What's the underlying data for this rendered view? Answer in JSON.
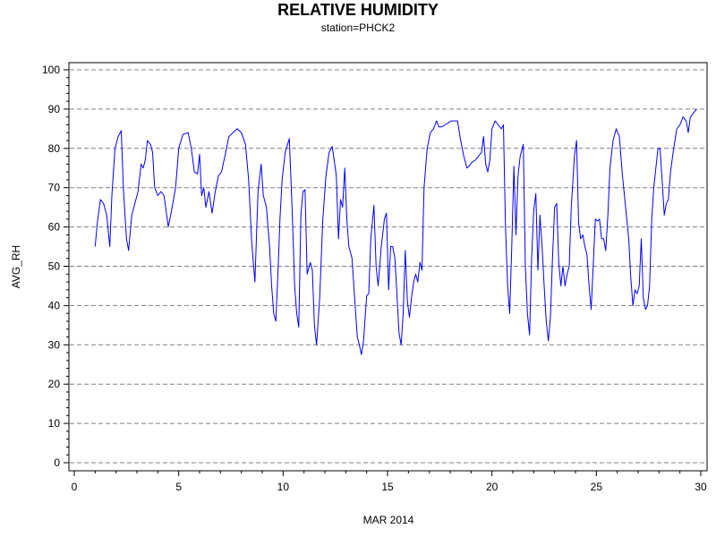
{
  "chart_data": {
    "type": "line",
    "title": "RELATIVE HUMIDITY",
    "subtitle": "station=PHCK2",
    "xlabel": "MAR 2014",
    "ylabel": "AVG_RH",
    "xlim": [
      0,
      30
    ],
    "ylim": [
      0,
      100
    ],
    "x_ticks": [
      0,
      5,
      10,
      15,
      20,
      25,
      30
    ],
    "x_tick_labels": [
      "0",
      "5",
      "10",
      "15",
      "20",
      "25",
      "30"
    ],
    "y_ticks": [
      0,
      10,
      20,
      30,
      40,
      50,
      60,
      70,
      80,
      90,
      100
    ],
    "y_tick_labels": [
      "0",
      "10",
      "20",
      "30",
      "40",
      "50",
      "60",
      "70",
      "80",
      "90",
      "100"
    ],
    "grid": "horizontal dashed",
    "line_color": "#0000ff",
    "grid_color": "#808080",
    "series": [
      {
        "points": [
          [
            1.0,
            55
          ],
          [
            1.1,
            61
          ],
          [
            1.25,
            67
          ],
          [
            1.4,
            66
          ],
          [
            1.55,
            63
          ],
          [
            1.7,
            55
          ],
          [
            1.8,
            68
          ],
          [
            1.95,
            80
          ],
          [
            2.1,
            83
          ],
          [
            2.25,
            84.5
          ],
          [
            2.35,
            70
          ],
          [
            2.5,
            57
          ],
          [
            2.6,
            54
          ],
          [
            2.75,
            63
          ],
          [
            2.9,
            66
          ],
          [
            3.05,
            69
          ],
          [
            3.2,
            76
          ],
          [
            3.3,
            75
          ],
          [
            3.4,
            77
          ],
          [
            3.5,
            82
          ],
          [
            3.65,
            81
          ],
          [
            3.75,
            79
          ],
          [
            3.85,
            70
          ],
          [
            4.0,
            68
          ],
          [
            4.15,
            69
          ],
          [
            4.3,
            68
          ],
          [
            4.5,
            60
          ],
          [
            4.65,
            64
          ],
          [
            4.85,
            70
          ],
          [
            5.0,
            80
          ],
          [
            5.2,
            83.5
          ],
          [
            5.45,
            84
          ],
          [
            5.6,
            80
          ],
          [
            5.75,
            74
          ],
          [
            5.9,
            73.5
          ],
          [
            6.0,
            78.5
          ],
          [
            6.1,
            68
          ],
          [
            6.2,
            70
          ],
          [
            6.3,
            65
          ],
          [
            6.45,
            69
          ],
          [
            6.6,
            63.5
          ],
          [
            6.75,
            69
          ],
          [
            6.9,
            73
          ],
          [
            7.05,
            74
          ],
          [
            7.25,
            79
          ],
          [
            7.4,
            83
          ],
          [
            7.6,
            84
          ],
          [
            7.8,
            85
          ],
          [
            8.0,
            84
          ],
          [
            8.2,
            81
          ],
          [
            8.35,
            72
          ],
          [
            8.5,
            56
          ],
          [
            8.65,
            46
          ],
          [
            8.8,
            69
          ],
          [
            8.95,
            76
          ],
          [
            9.05,
            68
          ],
          [
            9.2,
            65
          ],
          [
            9.35,
            55
          ],
          [
            9.45,
            45
          ],
          [
            9.55,
            38
          ],
          [
            9.65,
            36
          ],
          [
            9.75,
            48
          ],
          [
            9.85,
            62
          ],
          [
            9.95,
            72
          ],
          [
            10.1,
            79
          ],
          [
            10.3,
            82.5
          ],
          [
            10.45,
            62
          ],
          [
            10.55,
            45
          ],
          [
            10.65,
            38
          ],
          [
            10.75,
            34.5
          ],
          [
            10.85,
            63
          ],
          [
            10.95,
            69
          ],
          [
            11.05,
            69.5
          ],
          [
            11.15,
            48
          ],
          [
            11.3,
            51
          ],
          [
            11.4,
            49
          ],
          [
            11.5,
            35
          ],
          [
            11.6,
            30
          ],
          [
            11.75,
            42
          ],
          [
            11.9,
            62
          ],
          [
            12.05,
            73
          ],
          [
            12.2,
            79
          ],
          [
            12.35,
            80.5
          ],
          [
            12.55,
            73
          ],
          [
            12.65,
            57
          ],
          [
            12.75,
            67
          ],
          [
            12.85,
            65
          ],
          [
            12.95,
            75
          ],
          [
            13.05,
            62
          ],
          [
            13.15,
            55
          ],
          [
            13.3,
            52
          ],
          [
            13.45,
            40
          ],
          [
            13.55,
            32
          ],
          [
            13.65,
            30
          ],
          [
            13.75,
            27.5
          ],
          [
            13.85,
            31
          ],
          [
            14.0,
            42.5
          ],
          [
            14.1,
            43
          ],
          [
            14.2,
            57
          ],
          [
            14.35,
            65.5
          ],
          [
            14.45,
            50
          ],
          [
            14.55,
            45
          ],
          [
            14.7,
            55
          ],
          [
            14.85,
            62
          ],
          [
            14.95,
            63.5
          ],
          [
            15.05,
            44
          ],
          [
            15.15,
            55
          ],
          [
            15.25,
            55
          ],
          [
            15.35,
            52
          ],
          [
            15.45,
            43
          ],
          [
            15.55,
            33
          ],
          [
            15.65,
            30
          ],
          [
            15.75,
            38
          ],
          [
            15.85,
            54
          ],
          [
            15.95,
            41
          ],
          [
            16.05,
            37
          ],
          [
            16.15,
            42
          ],
          [
            16.25,
            46
          ],
          [
            16.35,
            48
          ],
          [
            16.45,
            46
          ],
          [
            16.55,
            51
          ],
          [
            16.65,
            49
          ],
          [
            16.75,
            70
          ],
          [
            16.9,
            80
          ],
          [
            17.05,
            84
          ],
          [
            17.2,
            85
          ],
          [
            17.35,
            87
          ],
          [
            17.45,
            85.5
          ],
          [
            17.6,
            85.5
          ],
          [
            17.75,
            86
          ],
          [
            17.9,
            86.5
          ],
          [
            18.05,
            87
          ],
          [
            18.2,
            87
          ],
          [
            18.35,
            87
          ],
          [
            18.5,
            82
          ],
          [
            18.65,
            78
          ],
          [
            18.8,
            75
          ],
          [
            18.9,
            75.5
          ],
          [
            19.05,
            76.5
          ],
          [
            19.2,
            77
          ],
          [
            19.35,
            78
          ],
          [
            19.5,
            79
          ],
          [
            19.6,
            83
          ],
          [
            19.7,
            76
          ],
          [
            19.8,
            74
          ],
          [
            19.9,
            77
          ],
          [
            20.0,
            85
          ],
          [
            20.15,
            87
          ],
          [
            20.3,
            86
          ],
          [
            20.45,
            85
          ],
          [
            20.55,
            86
          ],
          [
            20.65,
            60
          ],
          [
            20.75,
            45
          ],
          [
            20.85,
            38
          ],
          [
            20.95,
            55
          ],
          [
            21.05,
            75.5
          ],
          [
            21.15,
            58
          ],
          [
            21.25,
            73
          ],
          [
            21.35,
            78
          ],
          [
            21.5,
            81
          ],
          [
            21.6,
            50
          ],
          [
            21.7,
            38
          ],
          [
            21.8,
            32.5
          ],
          [
            21.9,
            52
          ],
          [
            22.0,
            64
          ],
          [
            22.1,
            68.5
          ],
          [
            22.2,
            49
          ],
          [
            22.3,
            63
          ],
          [
            22.4,
            55
          ],
          [
            22.5,
            45
          ],
          [
            22.6,
            36
          ],
          [
            22.7,
            31
          ],
          [
            22.8,
            37
          ],
          [
            22.9,
            52
          ],
          [
            23.0,
            65
          ],
          [
            23.1,
            66
          ],
          [
            23.2,
            51
          ],
          [
            23.3,
            45
          ],
          [
            23.4,
            50
          ],
          [
            23.5,
            45
          ],
          [
            23.6,
            48
          ],
          [
            23.7,
            50
          ],
          [
            23.8,
            65
          ],
          [
            23.95,
            78
          ],
          [
            24.05,
            82
          ],
          [
            24.15,
            61
          ],
          [
            24.25,
            57
          ],
          [
            24.35,
            58
          ],
          [
            24.45,
            55
          ],
          [
            24.55,
            53
          ],
          [
            24.65,
            45
          ],
          [
            24.75,
            39
          ],
          [
            24.85,
            50
          ],
          [
            24.95,
            62
          ],
          [
            25.05,
            61.5
          ],
          [
            25.15,
            62
          ],
          [
            25.25,
            57
          ],
          [
            25.35,
            57
          ],
          [
            25.45,
            54
          ],
          [
            25.55,
            63
          ],
          [
            25.65,
            75
          ],
          [
            25.8,
            82
          ],
          [
            25.95,
            85
          ],
          [
            26.1,
            83
          ],
          [
            26.25,
            73
          ],
          [
            26.4,
            65
          ],
          [
            26.55,
            57
          ],
          [
            26.65,
            47
          ],
          [
            26.75,
            40
          ],
          [
            26.85,
            44
          ],
          [
            26.95,
            43
          ],
          [
            27.05,
            45
          ],
          [
            27.15,
            57
          ],
          [
            27.25,
            42
          ],
          [
            27.35,
            39
          ],
          [
            27.45,
            40
          ],
          [
            27.55,
            45
          ],
          [
            27.65,
            62
          ],
          [
            27.75,
            70
          ],
          [
            27.85,
            75
          ],
          [
            27.95,
            80
          ],
          [
            28.05,
            80
          ],
          [
            28.15,
            72
          ],
          [
            28.25,
            63
          ],
          [
            28.35,
            66
          ],
          [
            28.45,
            67
          ],
          [
            28.55,
            74
          ],
          [
            28.7,
            80
          ],
          [
            28.85,
            85
          ],
          [
            29.0,
            86
          ],
          [
            29.15,
            88
          ],
          [
            29.3,
            87
          ],
          [
            29.4,
            84
          ],
          [
            29.5,
            88
          ],
          [
            29.65,
            89
          ],
          [
            29.8,
            90
          ]
        ]
      }
    ]
  }
}
